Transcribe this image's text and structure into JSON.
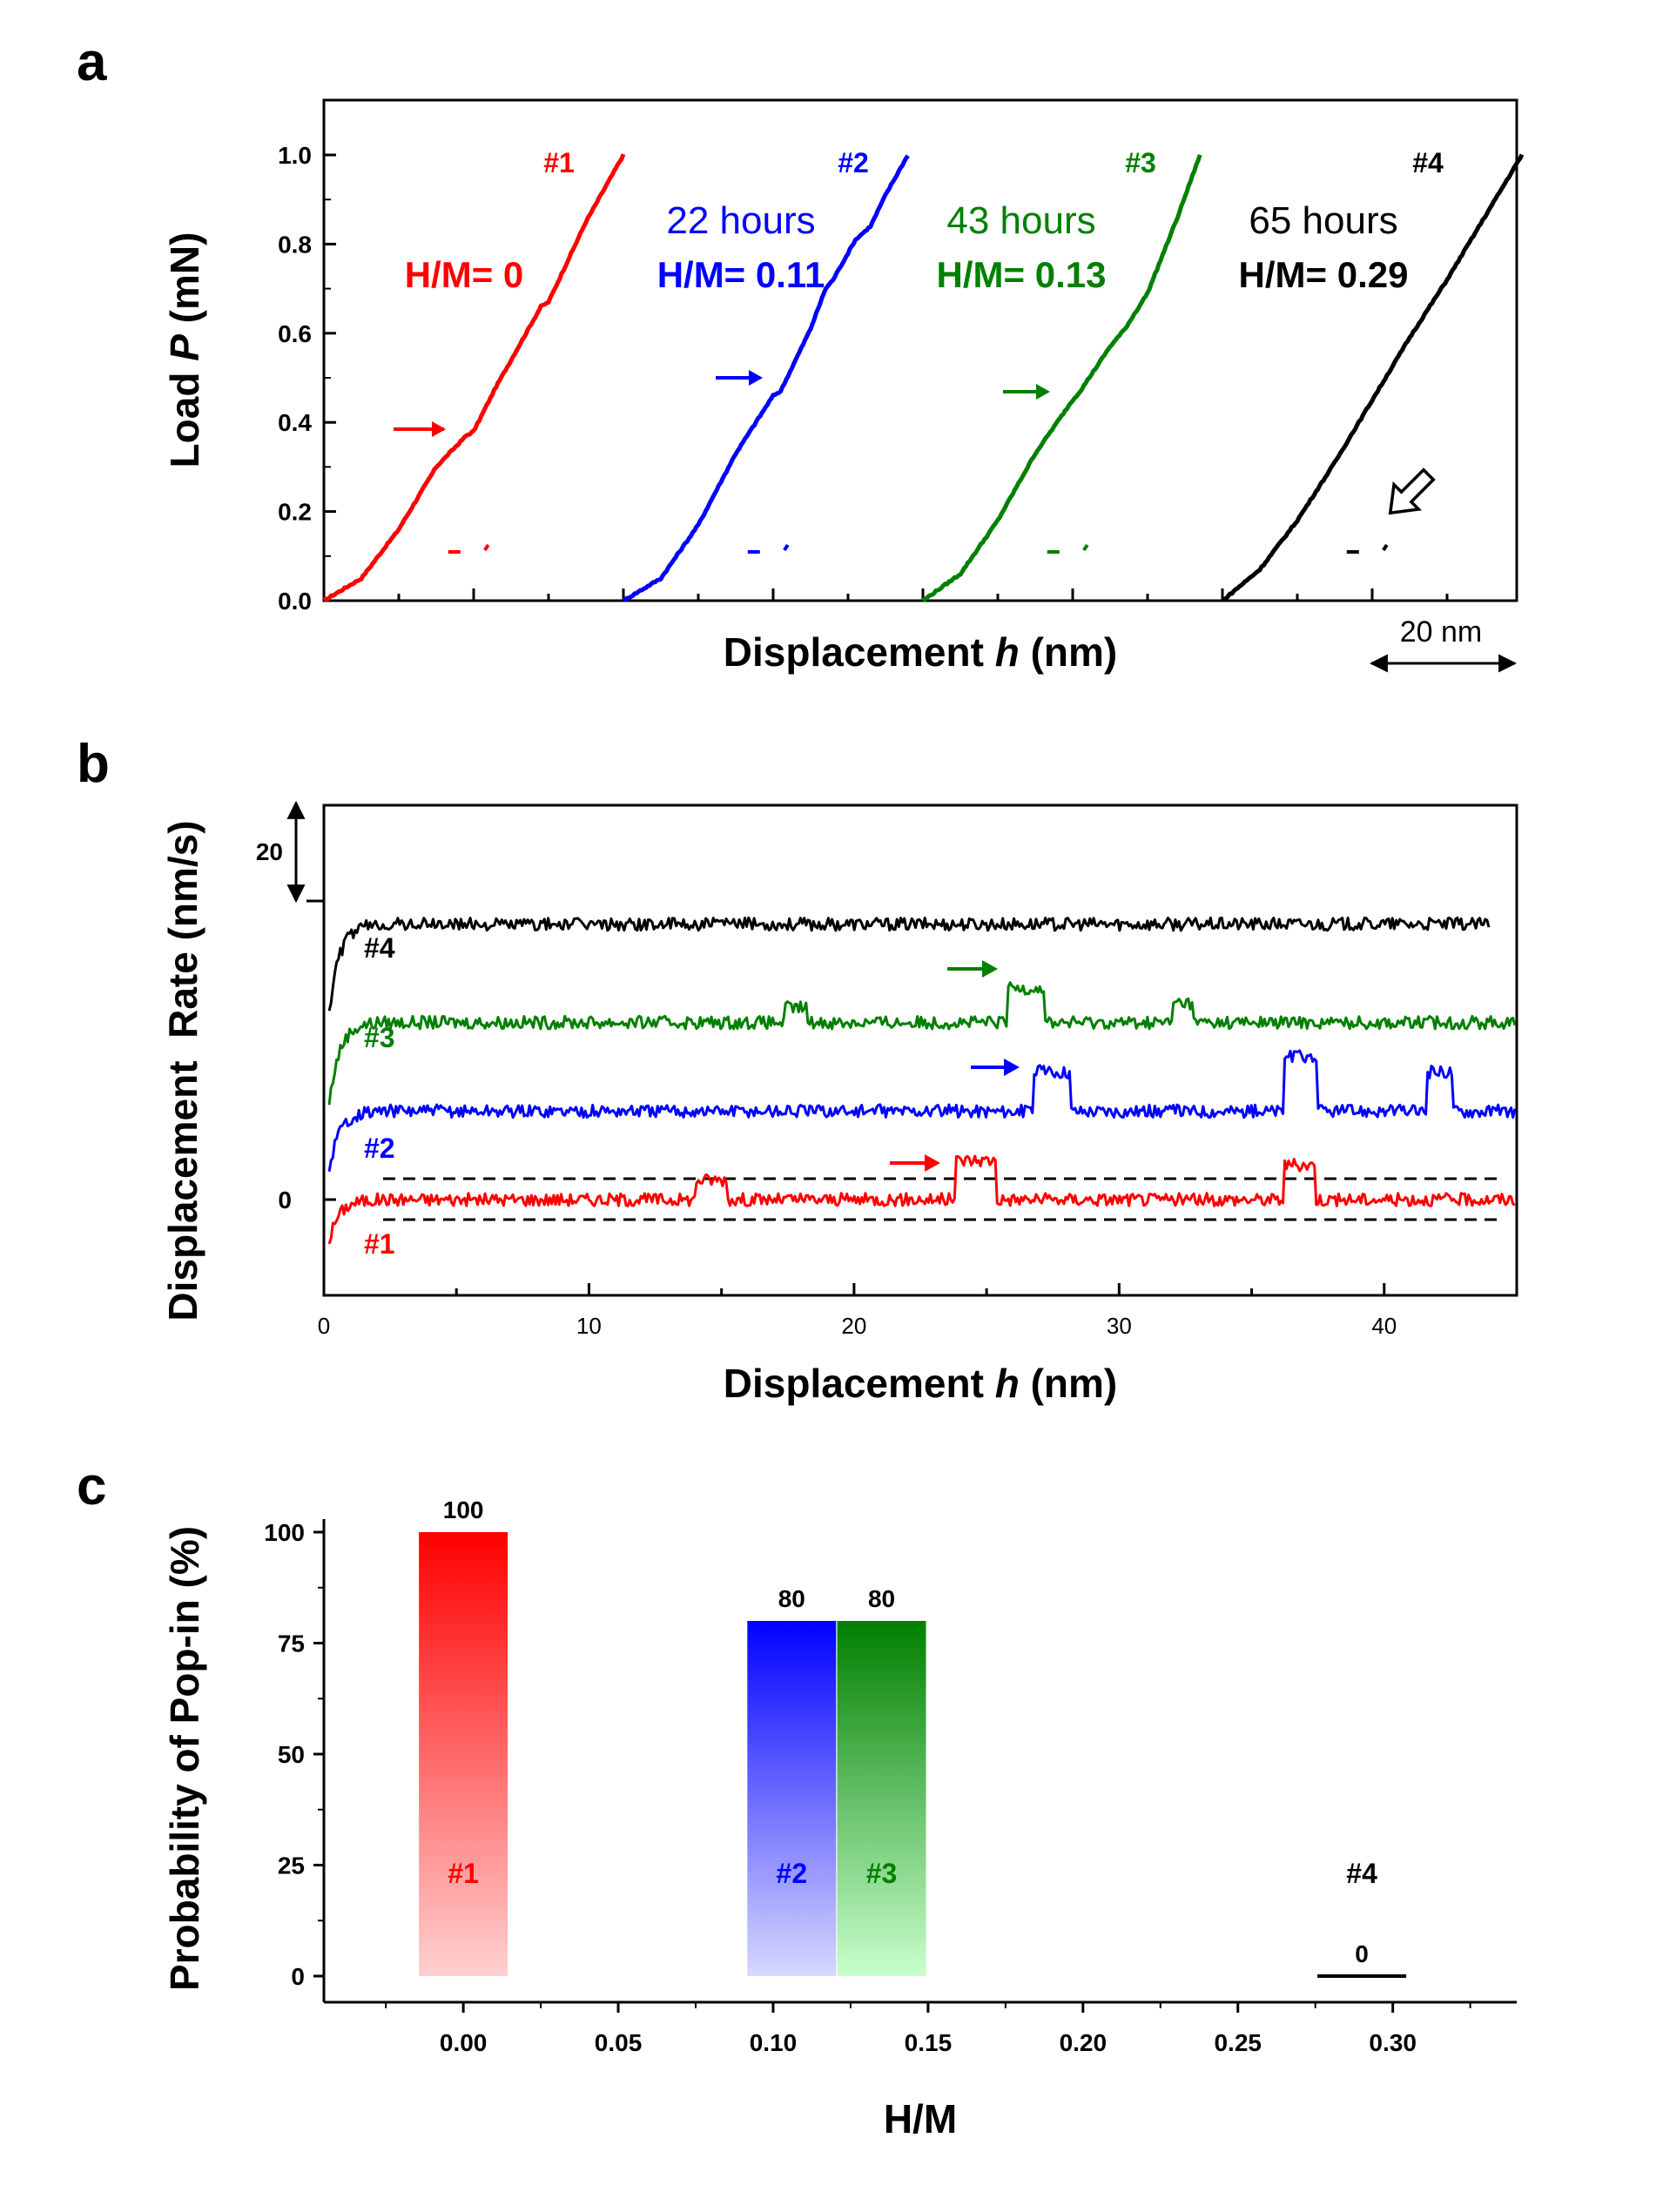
{
  "colors": {
    "red": "#ff0000",
    "blue": "#0000ff",
    "green": "#008000",
    "black": "#000000"
  },
  "chart_data": [
    {
      "panel": "a",
      "type": "line",
      "xlabel": "Displacement h (nm)",
      "ylabel": "Load P (mN)",
      "ylim": [
        0,
        1.05
      ],
      "yticks": [
        "0.0",
        "0.2",
        "0.4",
        "0.6",
        "0.8",
        "1.0"
      ],
      "scale_bar_label": "20 nm",
      "series": [
        {
          "name": "#1",
          "duration": "",
          "hm_label": "H/M= 0",
          "color": "#ff0000",
          "offset_nm": 0,
          "x": [
            0,
            5,
            10,
            15,
            19,
            20,
            23,
            29,
            30,
            35,
            38,
            40
          ],
          "y": [
            0,
            0.05,
            0.16,
            0.3,
            0.37,
            0.38,
            0.48,
            0.66,
            0.67,
            0.85,
            0.94,
            1.0
          ]
        },
        {
          "name": "#2",
          "duration": "22 hours",
          "hm_label": "H/M= 0.11",
          "color": "#0000ff",
          "offset_nm": 40,
          "x": [
            0,
            5,
            10,
            15,
            20,
            21,
            25,
            27,
            28,
            31,
            33,
            35,
            38
          ],
          "y": [
            0,
            0.05,
            0.17,
            0.33,
            0.46,
            0.47,
            0.61,
            0.7,
            0.72,
            0.81,
            0.84,
            0.91,
            1.0
          ]
        },
        {
          "name": "#3",
          "duration": "43 hours",
          "hm_label": "H/M= 0.13",
          "color": "#008000",
          "offset_nm": 80,
          "x": [
            0,
            5,
            10,
            15,
            20,
            21,
            25,
            27,
            30,
            34,
            37
          ],
          "y": [
            0,
            0.06,
            0.18,
            0.33,
            0.45,
            0.47,
            0.57,
            0.61,
            0.69,
            0.86,
            1.0
          ]
        },
        {
          "name": "#4",
          "duration": "65 hours",
          "hm_label": "H/M= 0.29",
          "color": "#000000",
          "offset_nm": 120,
          "x": [
            0,
            5,
            10,
            15,
            20,
            25,
            30,
            35,
            40
          ],
          "y": [
            0,
            0.07,
            0.18,
            0.31,
            0.45,
            0.59,
            0.72,
            0.86,
            1.0
          ]
        }
      ]
    },
    {
      "panel": "b",
      "type": "line",
      "xlabel": "Displacement h (nm)",
      "ylabel": "Displacement  Rate (nm/s)",
      "xlim": [
        0,
        45
      ],
      "xticks": [
        0,
        10,
        20,
        30,
        40
      ],
      "ytick_labels": [
        "20",
        "0"
      ],
      "series": [
        {
          "name": "#1",
          "color": "#ff0000",
          "baseline": 0,
          "end_x": 45,
          "popins": [
            [
              14,
              15.2,
              4
            ],
            [
              23.8,
              25.4,
              8
            ],
            [
              36.2,
              37.4,
              7
            ]
          ]
        },
        {
          "name": "#2",
          "color": "#0000ff",
          "baseline": 18,
          "end_x": 45,
          "popins": [
            [
              26.8,
              28.2,
              8
            ],
            [
              36.2,
              37.5,
              11
            ],
            [
              41.6,
              42.6,
              8
            ]
          ]
        },
        {
          "name": "#3",
          "color": "#008000",
          "baseline": 36,
          "end_x": 45,
          "popins": [
            [
              17.4,
              18.2,
              3
            ],
            [
              25.8,
              27.2,
              7
            ],
            [
              32,
              32.8,
              4
            ]
          ]
        },
        {
          "name": "#4",
          "color": "#000000",
          "baseline": 56,
          "end_x": 44,
          "popins": []
        }
      ]
    },
    {
      "panel": "c",
      "type": "bar",
      "xlabel": "H/M",
      "ylabel": "Probability of Pop-in (%)",
      "xlim": [
        -0.045,
        0.34
      ],
      "ylim": [
        0,
        110
      ],
      "xticks": [
        "0.00",
        "0.05",
        "0.10",
        "0.15",
        "0.20",
        "0.25",
        "0.30"
      ],
      "yticks": [
        0,
        25,
        50,
        75,
        100
      ],
      "bars": [
        {
          "name": "#1",
          "x": 0.0,
          "value": 100,
          "color": "#ff0000"
        },
        {
          "name": "#2",
          "x": 0.106,
          "value": 80,
          "color": "#0000ff"
        },
        {
          "name": "#3",
          "x": 0.135,
          "value": 80,
          "color": "#008000"
        },
        {
          "name": "#4",
          "x": 0.29,
          "value": 0,
          "color": "#000000"
        }
      ]
    }
  ]
}
